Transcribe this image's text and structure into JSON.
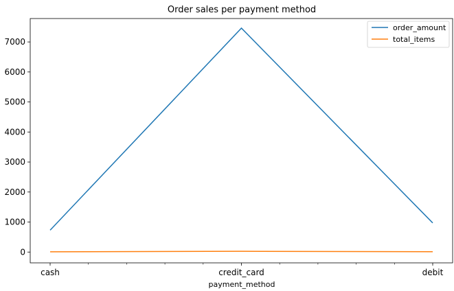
{
  "chart_data": {
    "type": "line",
    "title": "Order sales per payment method",
    "xlabel": "payment_method",
    "ylabel": "",
    "categories": [
      "cash",
      "credit_card",
      "debit"
    ],
    "x_minor_ticks": 4,
    "yticks": [
      0,
      1000,
      2000,
      3000,
      4000,
      5000,
      6000,
      7000
    ],
    "ylim": [
      -360,
      7780
    ],
    "grid": false,
    "legend_position": "top-right",
    "series": [
      {
        "name": "order_amount",
        "color": "#1f77b4",
        "values": [
          730,
          7460,
          970
        ]
      },
      {
        "name": "total_items",
        "color": "#ff7f0e",
        "values": [
          9,
          25,
          12
        ]
      }
    ]
  }
}
